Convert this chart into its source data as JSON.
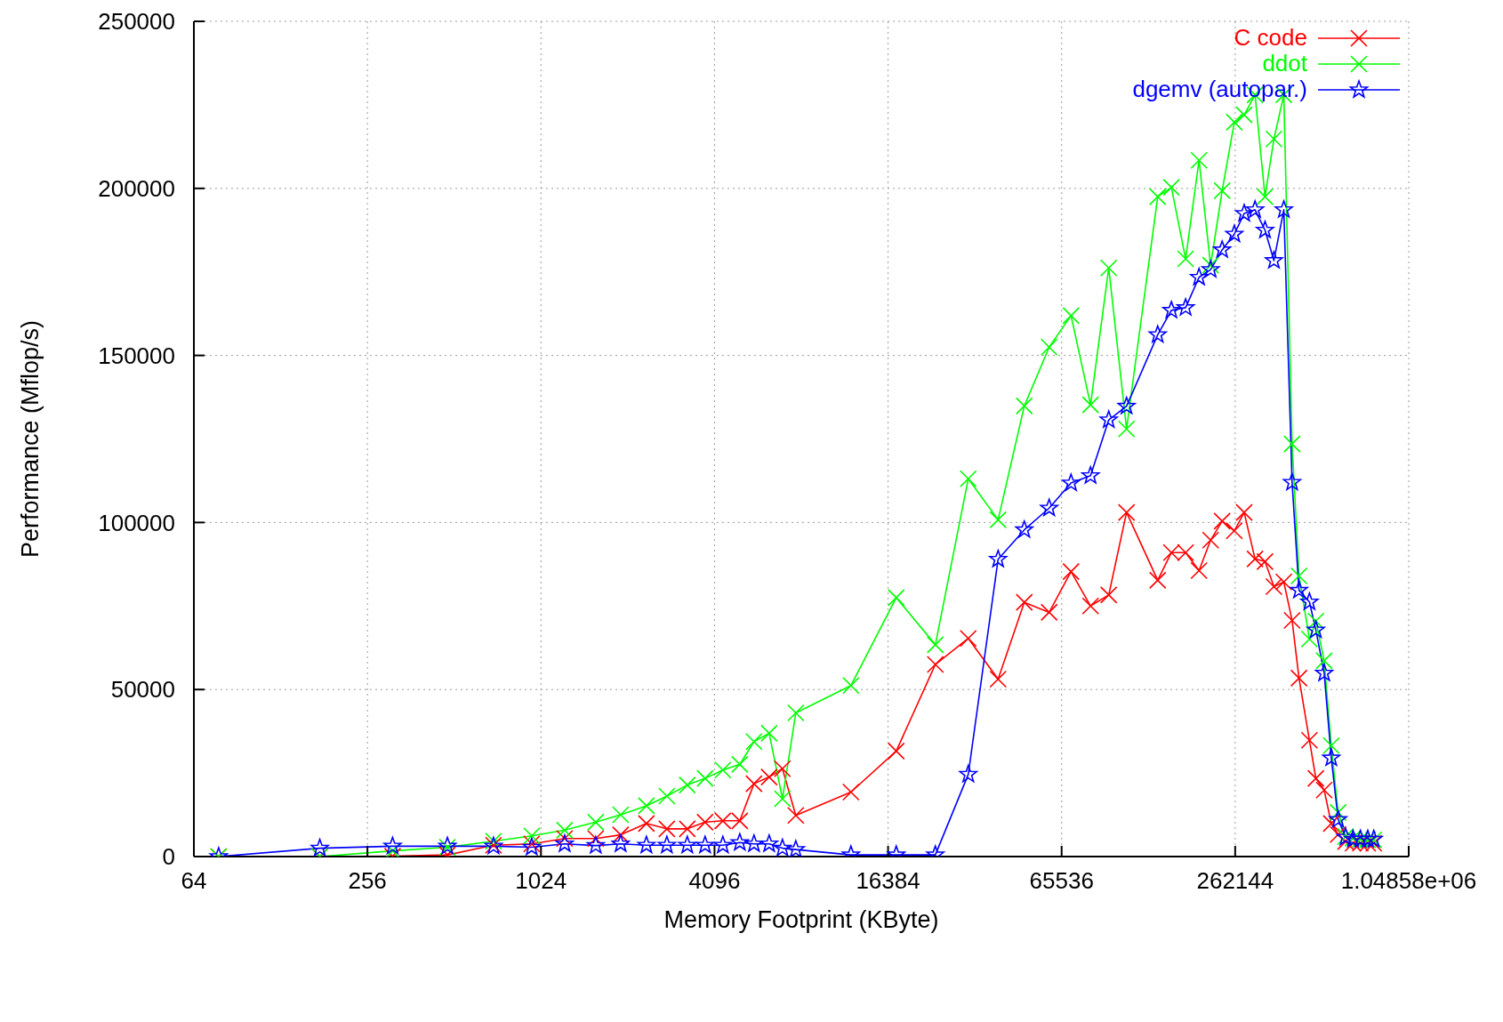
{
  "chart_data": {
    "type": "line",
    "xlabel": "Memory Footprint (KByte)",
    "ylabel": "Performance (Mflop/s)",
    "x": [
      78,
      175,
      313,
      485,
      701,
      951,
      1237,
      1586,
      1935,
      2377,
      2799,
      3295,
      3798,
      4378,
      5011,
      5613,
      6336,
      7047,
      7840,
      12179,
      17491,
      23904,
      31091,
      39462,
      48640,
      59328,
      70656,
      82560,
      95488,
      110080,
      141184,
      157504,
      176448,
      196416,
      215424,
      236224,
      260352,
      281664,
      307200,
      332672,
      357248,
      386624,
      412992,
      436480,
      474432,
      499456,
      533696,
      564864,
      596736,
      633088,
      672000,
      712768,
      756032,
      792960
    ],
    "series": [
      {
        "name": "C code",
        "color": "#ff0000",
        "marker": "cross",
        "values": [
          0,
          0,
          100,
          500,
          3400,
          3800,
          5400,
          5400,
          6500,
          9900,
          8300,
          8300,
          10300,
          10700,
          10700,
          21800,
          23800,
          26300,
          12300,
          19300,
          31600,
          57500,
          65300,
          53100,
          76100,
          73100,
          85300,
          75000,
          78300,
          103000,
          82700,
          91000,
          91000,
          85600,
          94700,
          100400,
          97500,
          103000,
          89100,
          88300,
          80800,
          82200,
          70700,
          53400,
          34800,
          23400,
          19900,
          9900,
          6600,
          4500,
          4000,
          4000,
          4000,
          4000
        ]
      },
      {
        "name": "ddot",
        "color": "#00ff00",
        "marker": "cross",
        "values": [
          0,
          0,
          1700,
          2800,
          4600,
          6200,
          7900,
          10300,
          12500,
          15200,
          18100,
          21400,
          23400,
          25900,
          27600,
          34400,
          36900,
          17300,
          43000,
          51200,
          77500,
          63400,
          113100,
          100800,
          134900,
          152500,
          161900,
          135200,
          176200,
          128000,
          197500,
          200300,
          178900,
          208400,
          177000,
          199300,
          219800,
          222000,
          228000,
          197500,
          214800,
          228000,
          123500,
          84000,
          65100,
          70500,
          58600,
          33200,
          13200,
          6000,
          5500,
          5200,
          5000,
          5000
        ]
      },
      {
        "name": "dgemv (autopar.)",
        "color": "#0000ff",
        "marker": "star",
        "values": [
          0,
          2500,
          3100,
          3100,
          3100,
          2800,
          3800,
          3300,
          3800,
          3400,
          3400,
          3400,
          3400,
          3400,
          4200,
          3800,
          3800,
          2500,
          2100,
          500,
          500,
          500,
          24600,
          89000,
          97800,
          104300,
          111800,
          114000,
          130700,
          134800,
          156200,
          163500,
          164300,
          173400,
          175700,
          181600,
          186300,
          192500,
          193600,
          187500,
          178400,
          193600,
          112000,
          79700,
          76200,
          67800,
          54900,
          29500,
          11100,
          5800,
          5200,
          5200,
          5200,
          5200
        ]
      }
    ],
    "log": "x",
    "xlim": [
      64,
      1048576
    ],
    "xticks": [
      64,
      256,
      1024,
      4096,
      16384,
      65536,
      262144,
      {
        "value": 1048576,
        "label": "1.04858e+06"
      }
    ],
    "ylim": [
      0,
      250000
    ],
    "yticks": [
      0,
      50000,
      100000,
      150000,
      200000,
      250000
    ],
    "grid": true,
    "legend": "top right"
  }
}
